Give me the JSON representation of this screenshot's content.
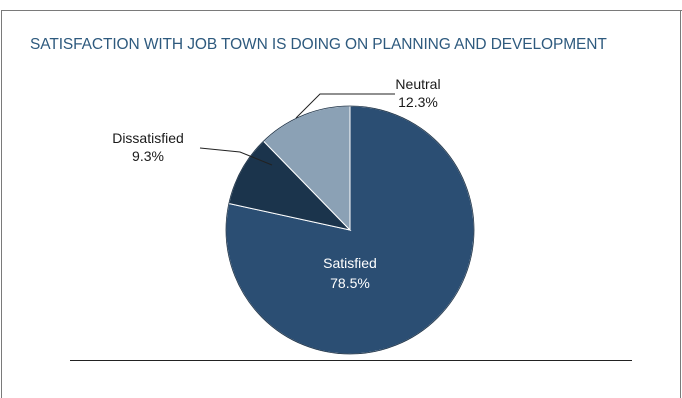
{
  "chart_data": {
    "type": "pie",
    "title": "SATISFACTION WITH JOB TOWN IS DOING ON PLANNING AND DEVELOPMENT",
    "slices": [
      {
        "label": "Satisfied",
        "percent_label": "78.5%",
        "value": 78.5,
        "color": "#2b4e73",
        "label_color": "#ffffff"
      },
      {
        "label": "Dissatisfied",
        "percent_label": "9.3%",
        "value": 9.3,
        "color": "#1b344c",
        "label_color": "#1a1a1a"
      },
      {
        "label": "Neutral",
        "percent_label": "12.3%",
        "value": 12.3,
        "color": "#8ba1b5",
        "label_color": "#1a1a1a"
      }
    ],
    "start_angle_deg": 0,
    "direction": "clockwise",
    "title_color": "#2e5a7e",
    "slice_border_color": "#ffffff"
  }
}
